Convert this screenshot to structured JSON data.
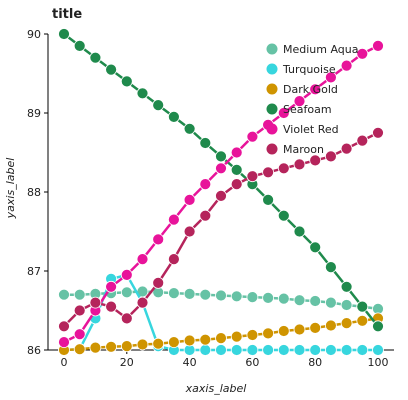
{
  "chart_data": {
    "type": "line",
    "title": "title",
    "xlabel": "xaxis_label",
    "ylabel": "yaxis_label",
    "xlim": [
      0,
      100
    ],
    "ylim": [
      86,
      90
    ],
    "xticks": [
      0,
      20,
      40,
      60,
      80,
      100
    ],
    "yticks": [
      86,
      87,
      88,
      89,
      90
    ],
    "grid": false,
    "legend_position": "top-right",
    "series": [
      {
        "name": "Medium Aqua",
        "color": "#66c2a5",
        "x": [
          0,
          5,
          10,
          15,
          20,
          25,
          30,
          35,
          40,
          45,
          50,
          55,
          60,
          65,
          70,
          75,
          80,
          85,
          90,
          95,
          100
        ],
        "y": [
          86.7,
          86.7,
          86.71,
          86.72,
          86.73,
          86.74,
          86.73,
          86.72,
          86.71,
          86.7,
          86.69,
          86.68,
          86.67,
          86.66,
          86.65,
          86.63,
          86.62,
          86.6,
          86.57,
          86.55,
          86.52
        ]
      },
      {
        "name": "Turquoise",
        "color": "#37d6de",
        "x": [
          0,
          5,
          10,
          15,
          20,
          25,
          30,
          35,
          40,
          45,
          50,
          55,
          60,
          65,
          70,
          75,
          80,
          85,
          90,
          95,
          100
        ],
        "y": [
          86.0,
          86.01,
          86.4,
          86.9,
          86.95,
          86.6,
          86.05,
          86.0,
          86.0,
          86.0,
          86.0,
          86.0,
          86.0,
          86.0,
          86.0,
          86.0,
          86.0,
          86.0,
          86.0,
          86.0,
          86.0
        ]
      },
      {
        "name": "Dark Gold",
        "color": "#cf9400",
        "x": [
          0,
          5,
          10,
          15,
          20,
          25,
          30,
          35,
          40,
          45,
          50,
          55,
          60,
          65,
          70,
          75,
          80,
          85,
          90,
          95,
          100
        ],
        "y": [
          86.0,
          86.01,
          86.03,
          86.04,
          86.05,
          86.07,
          86.08,
          86.1,
          86.12,
          86.13,
          86.15,
          86.17,
          86.19,
          86.21,
          86.24,
          86.26,
          86.28,
          86.31,
          86.34,
          86.37,
          86.4
        ]
      },
      {
        "name": "Seafoam",
        "color": "#1f8a4c",
        "x": [
          0,
          5,
          10,
          15,
          20,
          25,
          30,
          35,
          40,
          45,
          50,
          55,
          60,
          65,
          70,
          75,
          80,
          85,
          90,
          95,
          100
        ],
        "y": [
          90.0,
          89.85,
          89.7,
          89.55,
          89.4,
          89.25,
          89.1,
          88.95,
          88.8,
          88.62,
          88.45,
          88.28,
          88.1,
          87.9,
          87.7,
          87.5,
          87.3,
          87.05,
          86.8,
          86.55,
          86.3
        ]
      },
      {
        "name": "Violet Red",
        "color": "#e8139a",
        "x": [
          0,
          5,
          10,
          15,
          20,
          25,
          30,
          35,
          40,
          45,
          50,
          55,
          60,
          65,
          70,
          75,
          80,
          85,
          90,
          95,
          100
        ],
        "y": [
          86.1,
          86.2,
          86.5,
          86.8,
          86.95,
          87.15,
          87.4,
          87.65,
          87.9,
          88.1,
          88.3,
          88.5,
          88.7,
          88.85,
          89.0,
          89.15,
          89.3,
          89.45,
          89.6,
          89.75,
          89.85
        ]
      },
      {
        "name": "Maroon",
        "color": "#b5245b",
        "x": [
          0,
          5,
          10,
          15,
          20,
          25,
          30,
          35,
          40,
          45,
          50,
          55,
          60,
          65,
          70,
          75,
          80,
          85,
          90,
          95,
          100
        ],
        "y": [
          86.3,
          86.5,
          86.6,
          86.55,
          86.4,
          86.6,
          86.85,
          87.15,
          87.5,
          87.7,
          87.95,
          88.1,
          88.2,
          88.25,
          88.3,
          88.35,
          88.4,
          88.45,
          88.55,
          88.65,
          88.75
        ]
      }
    ]
  }
}
